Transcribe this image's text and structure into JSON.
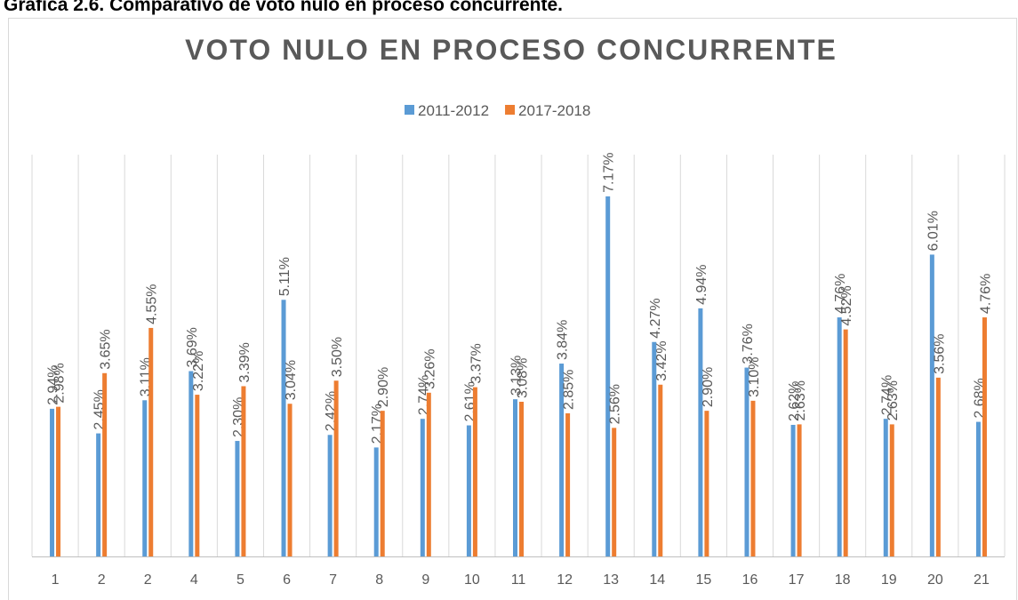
{
  "page_title": "Gráfica 2.6. Comparativo de voto nulo en proceso concurrente.",
  "chart_data": {
    "type": "bar",
    "title": "VOTO NULO EN PROCESO CONCURRENTE",
    "categories": [
      "1",
      "2",
      "2",
      "4",
      "5",
      "6",
      "7",
      "8",
      "9",
      "10",
      "11",
      "12",
      "13",
      "14",
      "15",
      "16",
      "17",
      "18",
      "19",
      "20",
      "21"
    ],
    "series": [
      {
        "name": "2011-2012",
        "color": "#5b9bd5",
        "values": [
          2.94,
          2.45,
          3.11,
          3.69,
          2.3,
          5.11,
          2.42,
          2.17,
          2.74,
          2.61,
          3.13,
          3.84,
          7.17,
          4.27,
          4.94,
          3.76,
          2.62,
          4.76,
          2.74,
          6.01,
          2.68
        ],
        "value_labels": [
          "2.94%",
          "2.45%",
          "3.11%",
          "3.69%",
          "2.30%",
          "5.11%",
          "2.42%",
          "2.17%",
          "2.74%",
          "2.61%",
          "3.13%",
          "3.84%",
          "7.17%",
          "4.27%",
          "4.94%",
          "3.76%",
          "2.62%",
          "4.76%",
          "2.74%",
          "6.01%",
          "2.68%"
        ]
      },
      {
        "name": "2017-2018",
        "color": "#ed7d31",
        "values": [
          2.98,
          3.65,
          4.55,
          3.22,
          3.39,
          3.04,
          3.5,
          2.9,
          3.26,
          3.37,
          3.08,
          2.85,
          2.56,
          3.42,
          2.9,
          3.1,
          2.63,
          4.52,
          2.63,
          3.56,
          4.76
        ],
        "value_labels": [
          "2.98%",
          "3.65%",
          "4.55%",
          "3.22%",
          "3.39%",
          "3.04%",
          "3.50%",
          "2.90%",
          "3.26%",
          "3.37%",
          "3.08%",
          "2.85%",
          "2.56%",
          "3.42%",
          "2.90%",
          "3.10%",
          "2.63%",
          "4.52%",
          "2.63%",
          "3.56%",
          "4.76%"
        ]
      }
    ],
    "ylim": [
      0,
      8
    ],
    "legend": "top"
  }
}
